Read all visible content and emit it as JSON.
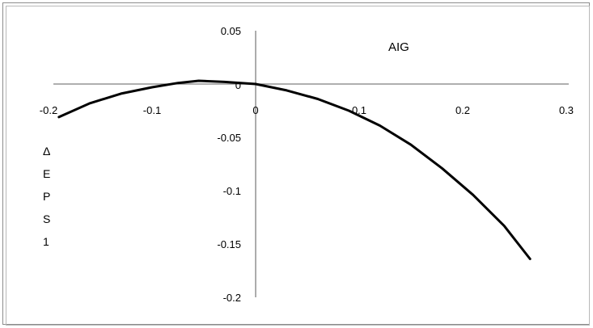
{
  "chart_data": {
    "type": "line",
    "title": "AIG",
    "ylabel": "ΔEPS1",
    "ylabel_chars": [
      "Δ",
      "E",
      "P",
      "S",
      "1"
    ],
    "xlabel": "",
    "xlim": [
      -0.2,
      0.3
    ],
    "ylim": [
      -0.2,
      0.05
    ],
    "x_ticks": [
      -0.2,
      -0.1,
      0,
      0.1,
      0.2,
      0.3
    ],
    "x_tick_labels": [
      "-0.2",
      "-0.1",
      "0",
      "0.1",
      "0.2",
      "0.3"
    ],
    "y_ticks": [
      0.05,
      0,
      -0.05,
      -0.1,
      -0.15,
      -0.2
    ],
    "y_tick_labels": [
      "0.05",
      "0",
      "-0.05",
      "-0.1",
      "-0.15",
      "-0.2"
    ],
    "grid": false,
    "legend": "none",
    "series": [
      {
        "x": [
          -0.19,
          -0.16,
          -0.13,
          -0.1,
          -0.075,
          -0.055,
          -0.03,
          0,
          0.03,
          0.06,
          0.09,
          0.12,
          0.15,
          0.18,
          0.21,
          0.24,
          0.265
        ],
        "y": [
          -0.031,
          -0.018,
          -0.009,
          -0.003,
          0.001,
          0.003,
          0.002,
          0.0,
          -0.006,
          -0.014,
          -0.025,
          -0.039,
          -0.057,
          -0.079,
          -0.104,
          -0.133,
          -0.164
        ],
        "color": "#000000"
      }
    ]
  }
}
